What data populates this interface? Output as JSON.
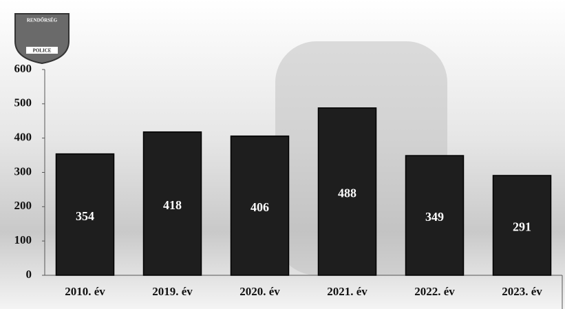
{
  "logo": {
    "top": "RENDŐRSÉG",
    "bottom": "POLICE"
  },
  "chart_data": {
    "type": "bar",
    "categories": [
      "2010. év",
      "2019. év",
      "2020. év",
      "2021. év",
      "2022. év",
      "2023. év"
    ],
    "values": [
      354,
      418,
      406,
      488,
      349,
      291
    ],
    "color": "#1e1e1e",
    "ylim": [
      0,
      600
    ],
    "yticks": [
      0,
      100,
      200,
      300,
      400,
      500,
      600
    ]
  }
}
